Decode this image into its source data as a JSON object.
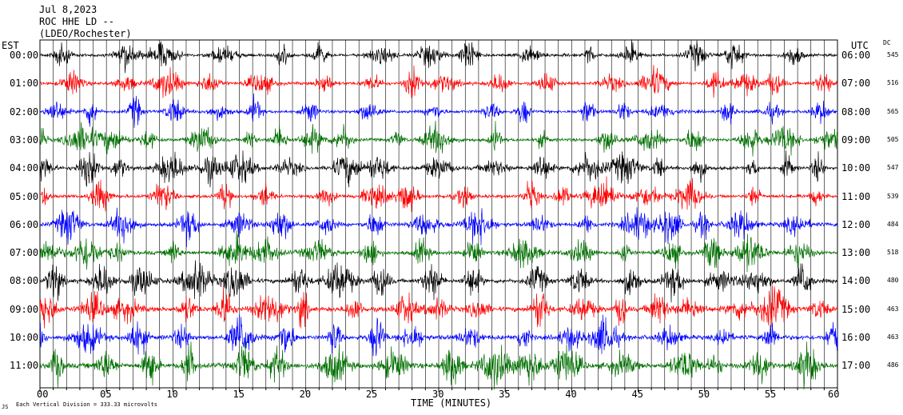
{
  "header": {
    "date": "Jul 8,2023",
    "station": "ROC HHE LD --",
    "network": "(LDEO/Rochester)"
  },
  "left_axis_title": "EST",
  "right_axis_title": "UTC",
  "dc_title": "DC",
  "x_axis_title": "TIME (MINUTES)",
  "footer": "Each Vertical Division = 333.33 microvolts",
  "footer_mark": "JS",
  "colors": {
    "cycle": [
      "#000000",
      "#ff0000",
      "#0000ff",
      "#007000"
    ],
    "gridline": "#000000",
    "background": "#ffffff"
  },
  "chart_data": {
    "type": "line",
    "title": "ROC HHE LD --",
    "xlabel": "TIME (MINUTES)",
    "xlim": [
      0,
      60
    ],
    "x_ticks": [
      "00",
      "05",
      "10",
      "15",
      "20",
      "25",
      "30",
      "35",
      "40",
      "45",
      "50",
      "55",
      "60"
    ],
    "series": [
      {
        "est": "00:00",
        "utc": "06:00",
        "dc": "545",
        "relative_amplitude": 0.8
      },
      {
        "est": "01:00",
        "utc": "07:00",
        "dc": "516",
        "relative_amplitude": 0.8
      },
      {
        "est": "02:00",
        "utc": "08:00",
        "dc": "565",
        "relative_amplitude": 0.85
      },
      {
        "est": "03:00",
        "utc": "09:00",
        "dc": "505",
        "relative_amplitude": 0.85
      },
      {
        "est": "04:00",
        "utc": "10:00",
        "dc": "547",
        "relative_amplitude": 0.9
      },
      {
        "est": "05:00",
        "utc": "11:00",
        "dc": "539",
        "relative_amplitude": 0.9
      },
      {
        "est": "06:00",
        "utc": "12:00",
        "dc": "484",
        "relative_amplitude": 1.0
      },
      {
        "est": "07:00",
        "utc": "13:00",
        "dc": "518",
        "relative_amplitude": 1.05
      },
      {
        "est": "08:00",
        "utc": "14:00",
        "dc": "480",
        "relative_amplitude": 1.1
      },
      {
        "est": "09:00",
        "utc": "15:00",
        "dc": "463",
        "relative_amplitude": 1.2
      },
      {
        "est": "10:00",
        "utc": "16:00",
        "dc": "463",
        "relative_amplitude": 1.2
      },
      {
        "est": "11:00",
        "utc": "17:00",
        "dc": "486",
        "relative_amplitude": 1.3
      }
    ]
  }
}
